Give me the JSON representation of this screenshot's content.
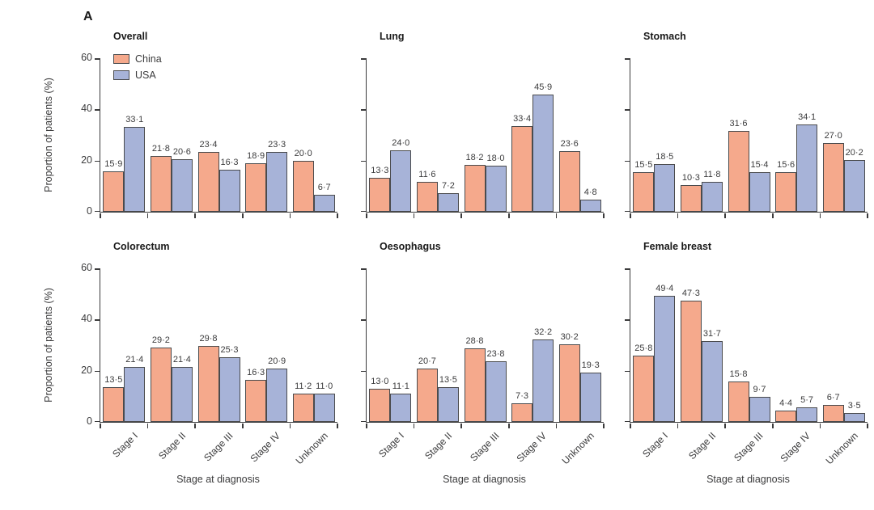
{
  "figure_label": "A",
  "colors": {
    "series_colors": [
      "#F5A98C",
      "#A7B3D8"
    ],
    "bar_border": "#4A4B4D",
    "axis": "#3B3B3C",
    "text": "#3B3B3C",
    "background": "#FFFFFF"
  },
  "legend": {
    "position": "top-left-of-first-panel",
    "entries": [
      {
        "label": "China"
      },
      {
        "label": "USA"
      }
    ]
  },
  "y_axis": {
    "label": "Proportion of patients (%)",
    "ticks": [
      0,
      20,
      40,
      60
    ],
    "max": 60
  },
  "x_axis": {
    "label": "Stage at diagnosis",
    "categories": [
      "Stage I",
      "Stage II",
      "Stage III",
      "Stage IV",
      "Unknown"
    ]
  },
  "decimal_separator": "·",
  "chart_data": [
    {
      "type": "bar",
      "title": "Overall",
      "row": 0,
      "col": 0,
      "categories": [
        "Stage I",
        "Stage II",
        "Stage III",
        "Stage IV",
        "Unknown"
      ],
      "ylim": [
        0,
        60
      ],
      "series": [
        {
          "name": "China",
          "values": [
            15.9,
            21.8,
            23.4,
            18.9,
            20.0
          ],
          "labels": [
            "15·9",
            "21·8",
            "23·4",
            "18·9",
            "20·0"
          ]
        },
        {
          "name": "USA",
          "values": [
            33.1,
            20.6,
            16.3,
            23.3,
            6.7
          ],
          "labels": [
            "33·1",
            "20·6",
            "16·3",
            "23·3",
            "6·7"
          ]
        }
      ],
      "show_y_tick_labels": true,
      "show_x_tick_labels": false,
      "show_legend": true,
      "show_y_axis_title": true,
      "show_x_axis_title": false
    },
    {
      "type": "bar",
      "title": "Lung",
      "row": 0,
      "col": 1,
      "categories": [
        "Stage I",
        "Stage II",
        "Stage III",
        "Stage IV",
        "Unknown"
      ],
      "ylim": [
        0,
        60
      ],
      "series": [
        {
          "name": "China",
          "values": [
            13.3,
            11.6,
            18.2,
            33.4,
            23.6
          ],
          "labels": [
            "13·3",
            "11·6",
            "18·2",
            "33·4",
            "23·6"
          ]
        },
        {
          "name": "USA",
          "values": [
            24.0,
            7.2,
            18.0,
            45.9,
            4.8
          ],
          "labels": [
            "24·0",
            "7·2",
            "18·0",
            "45·9",
            "4·8"
          ]
        }
      ],
      "show_y_tick_labels": false,
      "show_x_tick_labels": false,
      "show_legend": false,
      "show_y_axis_title": false,
      "show_x_axis_title": false
    },
    {
      "type": "bar",
      "title": "Stomach",
      "row": 0,
      "col": 2,
      "categories": [
        "Stage I",
        "Stage II",
        "Stage III",
        "Stage IV",
        "Unknown"
      ],
      "ylim": [
        0,
        60
      ],
      "series": [
        {
          "name": "China",
          "values": [
            15.5,
            10.3,
            31.6,
            15.6,
            27.0
          ],
          "labels": [
            "15·5",
            "10·3",
            "31·6",
            "15·6",
            "27·0"
          ]
        },
        {
          "name": "USA",
          "values": [
            18.5,
            11.8,
            15.4,
            34.1,
            20.2
          ],
          "labels": [
            "18·5",
            "11·8",
            "15·4",
            "34·1",
            "20·2"
          ]
        }
      ],
      "show_y_tick_labels": false,
      "show_x_tick_labels": false,
      "show_legend": false,
      "show_y_axis_title": false,
      "show_x_axis_title": false
    },
    {
      "type": "bar",
      "title": "Colorectum",
      "row": 1,
      "col": 0,
      "categories": [
        "Stage I",
        "Stage II",
        "Stage III",
        "Stage IV",
        "Unknown"
      ],
      "ylim": [
        0,
        60
      ],
      "series": [
        {
          "name": "China",
          "values": [
            13.5,
            29.2,
            29.8,
            16.3,
            11.2
          ],
          "labels": [
            "13·5",
            "29·2",
            "29·8",
            "16·3",
            "11·2"
          ]
        },
        {
          "name": "USA",
          "values": [
            21.4,
            21.4,
            25.3,
            20.9,
            11.0
          ],
          "labels": [
            "21·4",
            "21·4",
            "25·3",
            "20·9",
            "11·0"
          ]
        }
      ],
      "show_y_tick_labels": true,
      "show_x_tick_labels": true,
      "show_legend": false,
      "show_y_axis_title": true,
      "show_x_axis_title": true
    },
    {
      "type": "bar",
      "title": "Oesophagus",
      "row": 1,
      "col": 1,
      "categories": [
        "Stage I",
        "Stage II",
        "Stage III",
        "Stage IV",
        "Unknown"
      ],
      "ylim": [
        0,
        60
      ],
      "series": [
        {
          "name": "China",
          "values": [
            13.0,
            20.7,
            28.8,
            7.3,
            30.2
          ],
          "labels": [
            "13·0",
            "20·7",
            "28·8",
            "7·3",
            "30·2"
          ]
        },
        {
          "name": "USA",
          "values": [
            11.1,
            13.5,
            23.8,
            32.2,
            19.3
          ],
          "labels": [
            "11·1",
            "13·5",
            "23·8",
            "32·2",
            "19·3"
          ]
        }
      ],
      "show_y_tick_labels": false,
      "show_x_tick_labels": true,
      "show_legend": false,
      "show_y_axis_title": false,
      "show_x_axis_title": true
    },
    {
      "type": "bar",
      "title": "Female breast",
      "row": 1,
      "col": 2,
      "categories": [
        "Stage I",
        "Stage II",
        "Stage III",
        "Stage IV",
        "Unknown"
      ],
      "ylim": [
        0,
        60
      ],
      "series": [
        {
          "name": "China",
          "values": [
            25.8,
            47.3,
            15.8,
            4.4,
            6.7
          ],
          "labels": [
            "25·8",
            "47·3",
            "15·8",
            "4·4",
            "6·7"
          ]
        },
        {
          "name": "USA",
          "values": [
            49.4,
            31.7,
            9.7,
            5.7,
            3.5
          ],
          "labels": [
            "49·4",
            "31·7",
            "9·7",
            "5·7",
            "3·5"
          ]
        }
      ],
      "show_y_tick_labels": false,
      "show_x_tick_labels": true,
      "show_legend": false,
      "show_y_axis_title": false,
      "show_x_axis_title": true
    }
  ]
}
